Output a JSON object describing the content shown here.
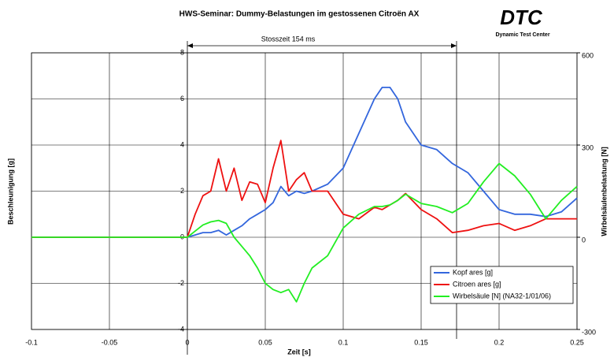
{
  "chart_data": {
    "type": "line",
    "title": "HWS-Seminar: Dummy-Belastungen im gestossenen Citroën AX",
    "x_label": "Zeit [s]",
    "y_label": "Beschleunigung [g]",
    "y2_label": "Wirbelsäulenbelastung [N]",
    "annotation": "Stosszeit  154 ms",
    "logo": {
      "text": "DTC",
      "subtitle": "Dynamic Test Center"
    },
    "xlim": [
      -0.1,
      0.25
    ],
    "xticks": [
      -0.1,
      -0.05,
      0,
      0.05,
      0.1,
      0.15,
      0.2,
      0.25
    ],
    "ylim": [
      -4,
      8
    ],
    "yticks": [
      -4,
      -2,
      0,
      2,
      4,
      6,
      8
    ],
    "y2lim": [
      -300,
      600
    ],
    "y2ticks": [
      -300,
      0,
      300,
      600
    ],
    "grid": true,
    "legend": "lower right",
    "x": [
      -0.1,
      -0.05,
      0,
      0.005,
      0.01,
      0.015,
      0.02,
      0.025,
      0.03,
      0.035,
      0.04,
      0.045,
      0.05,
      0.055,
      0.06,
      0.065,
      0.07,
      0.075,
      0.08,
      0.09,
      0.1,
      0.11,
      0.12,
      0.125,
      0.13,
      0.135,
      0.14,
      0.15,
      0.16,
      0.17,
      0.18,
      0.19,
      0.2,
      0.21,
      0.22,
      0.23,
      0.24,
      0.25
    ],
    "series": [
      {
        "name": "Kopf ares [g]",
        "color": "#3366dd",
        "values": [
          0,
          0,
          0,
          0.1,
          0.2,
          0.2,
          0.3,
          0.1,
          0.3,
          0.5,
          0.8,
          1.0,
          1.2,
          1.5,
          2.2,
          1.8,
          2.0,
          1.9,
          2.0,
          2.3,
          3.0,
          4.5,
          6.0,
          6.5,
          6.5,
          6.0,
          5.0,
          4.0,
          3.8,
          3.2,
          2.8,
          2.0,
          1.2,
          1.0,
          1.0,
          0.9,
          1.1,
          1.7
        ]
      },
      {
        "name": "Citroen ares [g]",
        "color": "#ee1111",
        "values": [
          0,
          0,
          0,
          1.0,
          1.8,
          2.0,
          3.4,
          2.0,
          3.0,
          1.6,
          2.4,
          2.3,
          1.5,
          3.0,
          4.2,
          2.0,
          2.5,
          2.8,
          2.0,
          2.0,
          1.0,
          0.8,
          1.3,
          1.2,
          1.4,
          1.6,
          1.9,
          1.2,
          0.8,
          0.2,
          0.3,
          0.5,
          0.6,
          0.3,
          0.5,
          0.8,
          0.8,
          0.8
        ]
      },
      {
        "name": "Wirbelsäule [N] (NA32-1/01/06)",
        "color": "#22ee22",
        "axis": "y2",
        "values": [
          0,
          0,
          0,
          20,
          40,
          50,
          55,
          45,
          0,
          -30,
          -60,
          -100,
          -150,
          -170,
          -180,
          -170,
          -210,
          -150,
          -100,
          -60,
          30,
          75,
          100,
          100,
          105,
          120,
          140,
          110,
          100,
          80,
          110,
          180,
          240,
          200,
          140,
          60,
          120,
          165
        ]
      }
    ]
  }
}
